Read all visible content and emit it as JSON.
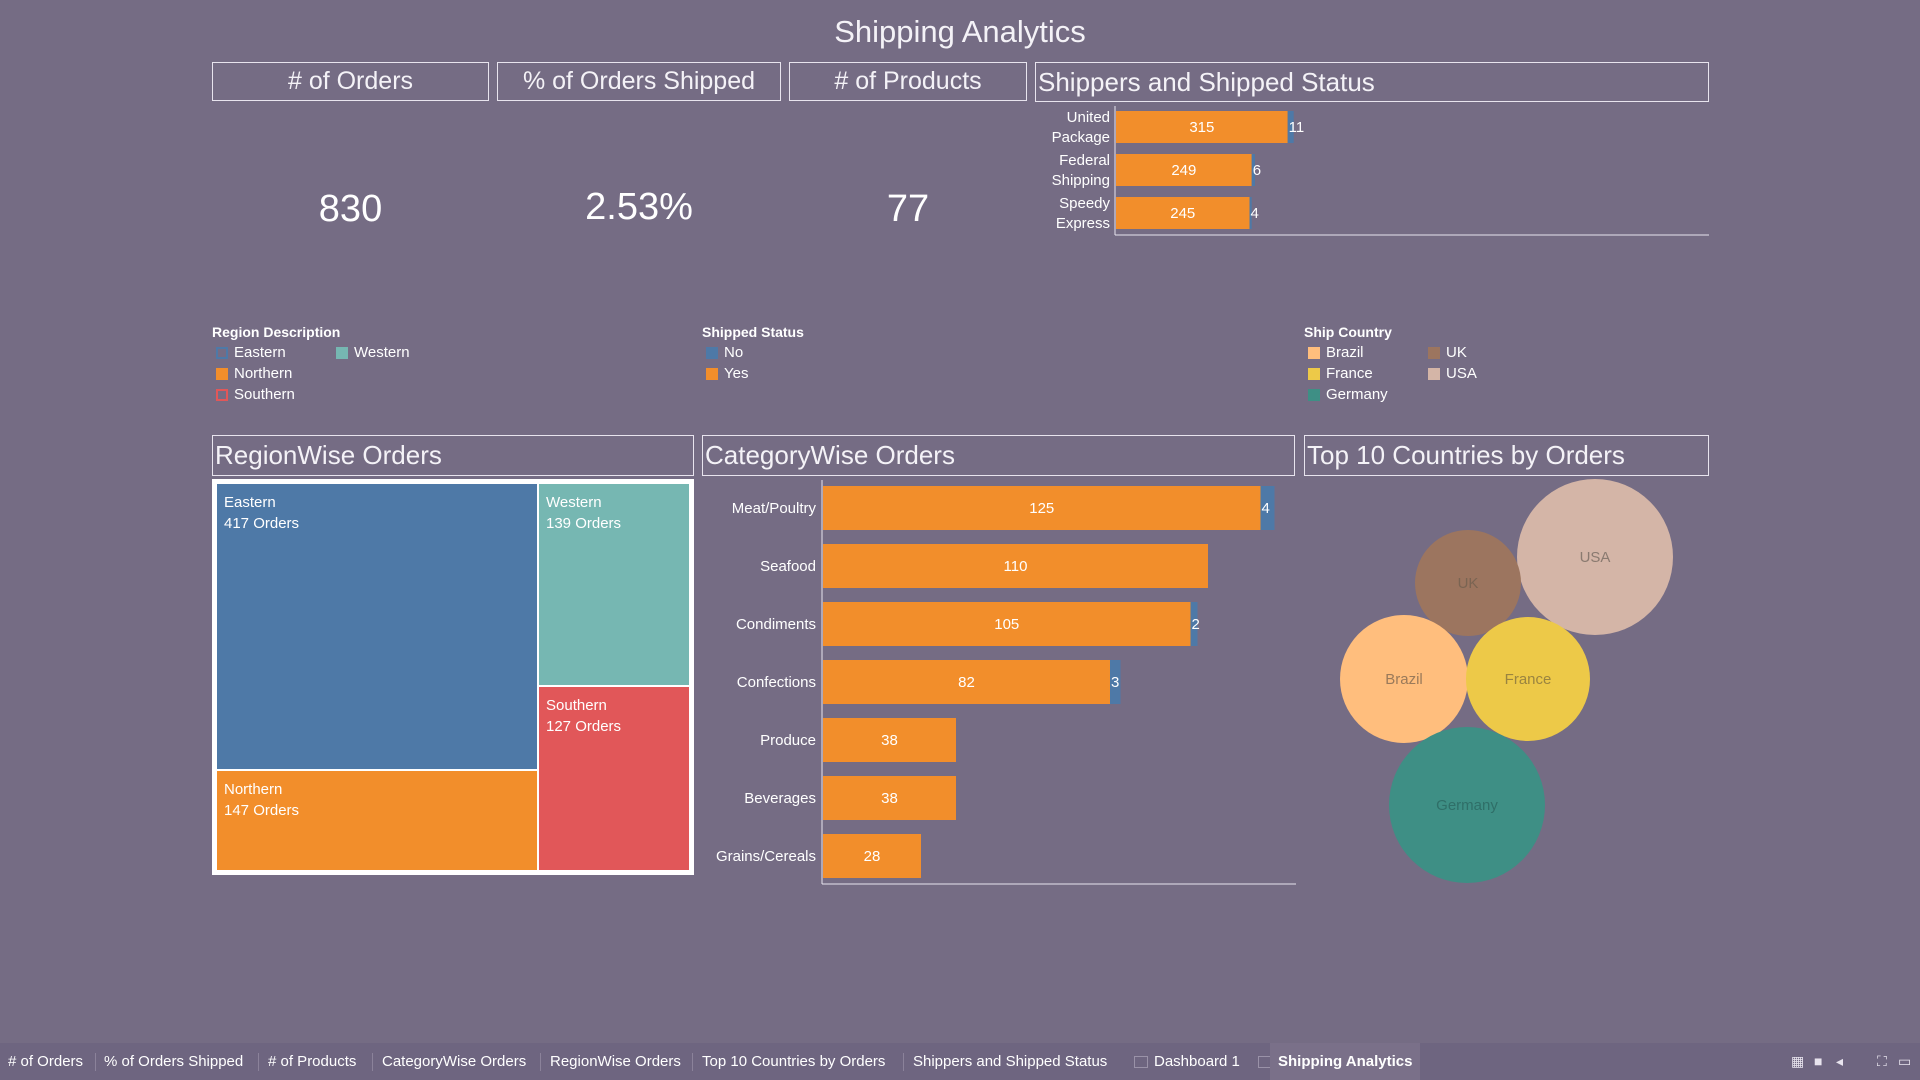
{
  "title": "Shipping Analytics",
  "kpis": [
    {
      "label": "# of Orders",
      "value": "830"
    },
    {
      "label": "% of Orders Shipped",
      "value": "2.53%"
    },
    {
      "label": "# of Products",
      "value": "77"
    }
  ],
  "panels": {
    "shippers": "Shippers and Shipped Status",
    "region": "RegionWise Orders",
    "category": "CategoryWise Orders",
    "countries": "Top 10 Countries by Orders"
  },
  "legends": {
    "region": {
      "title": "Region Description",
      "items": [
        "Eastern",
        "Western",
        "Northern",
        "Southern"
      ]
    },
    "shipped": {
      "title": "Shipped Status",
      "items": [
        "No",
        "Yes"
      ]
    },
    "country": {
      "title": "Ship Country",
      "items": [
        "Brazil",
        "UK",
        "France",
        "USA",
        "Germany"
      ]
    }
  },
  "colors": {
    "background": "#756c84",
    "yes": "#f28e2b",
    "no": "#4e79a7",
    "eastern": "#4e79a7",
    "western": "#76b7b2",
    "northern": "#f28e2b",
    "southern": "#e15759",
    "brazil": "#ffbe7d",
    "uk": "#9c755f",
    "france": "#edc948",
    "usa": "#d4b5a7",
    "germany": "#3e8f85"
  },
  "chart_data": [
    {
      "type": "bar",
      "title": "Shippers and Shipped Status",
      "categories": [
        "United Package",
        "Federal Shipping",
        "Speedy Express"
      ],
      "series": [
        {
          "name": "Yes",
          "values": [
            315,
            249,
            245
          ]
        },
        {
          "name": "No",
          "values": [
            11,
            6,
            4
          ]
        }
      ],
      "stacked": true,
      "orientation": "horizontal"
    },
    {
      "type": "heatmap",
      "title": "RegionWise Orders",
      "categories": [
        "Eastern",
        "Western",
        "Southern",
        "Northern"
      ],
      "values": [
        417,
        139,
        127,
        147
      ],
      "labels": [
        "417 Orders",
        "139 Orders",
        "127 Orders",
        "147 Orders"
      ]
    },
    {
      "type": "bar",
      "title": "CategoryWise Orders",
      "categories": [
        "Meat/Poultry",
        "Seafood",
        "Condiments",
        "Confections",
        "Produce",
        "Beverages",
        "Grains/Cereals"
      ],
      "series": [
        {
          "name": "Yes",
          "values": [
            125,
            110,
            105,
            82,
            38,
            38,
            28
          ]
        },
        {
          "name": "No",
          "values": [
            4,
            0,
            2,
            3,
            0,
            0,
            0
          ]
        }
      ],
      "stacked": true,
      "orientation": "horizontal"
    },
    {
      "type": "scatter",
      "title": "Top 10 Countries by Orders",
      "categories": [
        "USA",
        "UK",
        "Brazil",
        "France",
        "Germany"
      ]
    }
  ],
  "tabs": [
    "# of Orders",
    "% of Orders Shipped",
    "# of Products",
    "CategoryWise Orders",
    "RegionWise Orders",
    "Top 10 Countries by Orders",
    "Shippers and Shipped Status",
    "Dashboard 1",
    "Shipping Analytics"
  ],
  "active_tab": "Shipping Analytics"
}
